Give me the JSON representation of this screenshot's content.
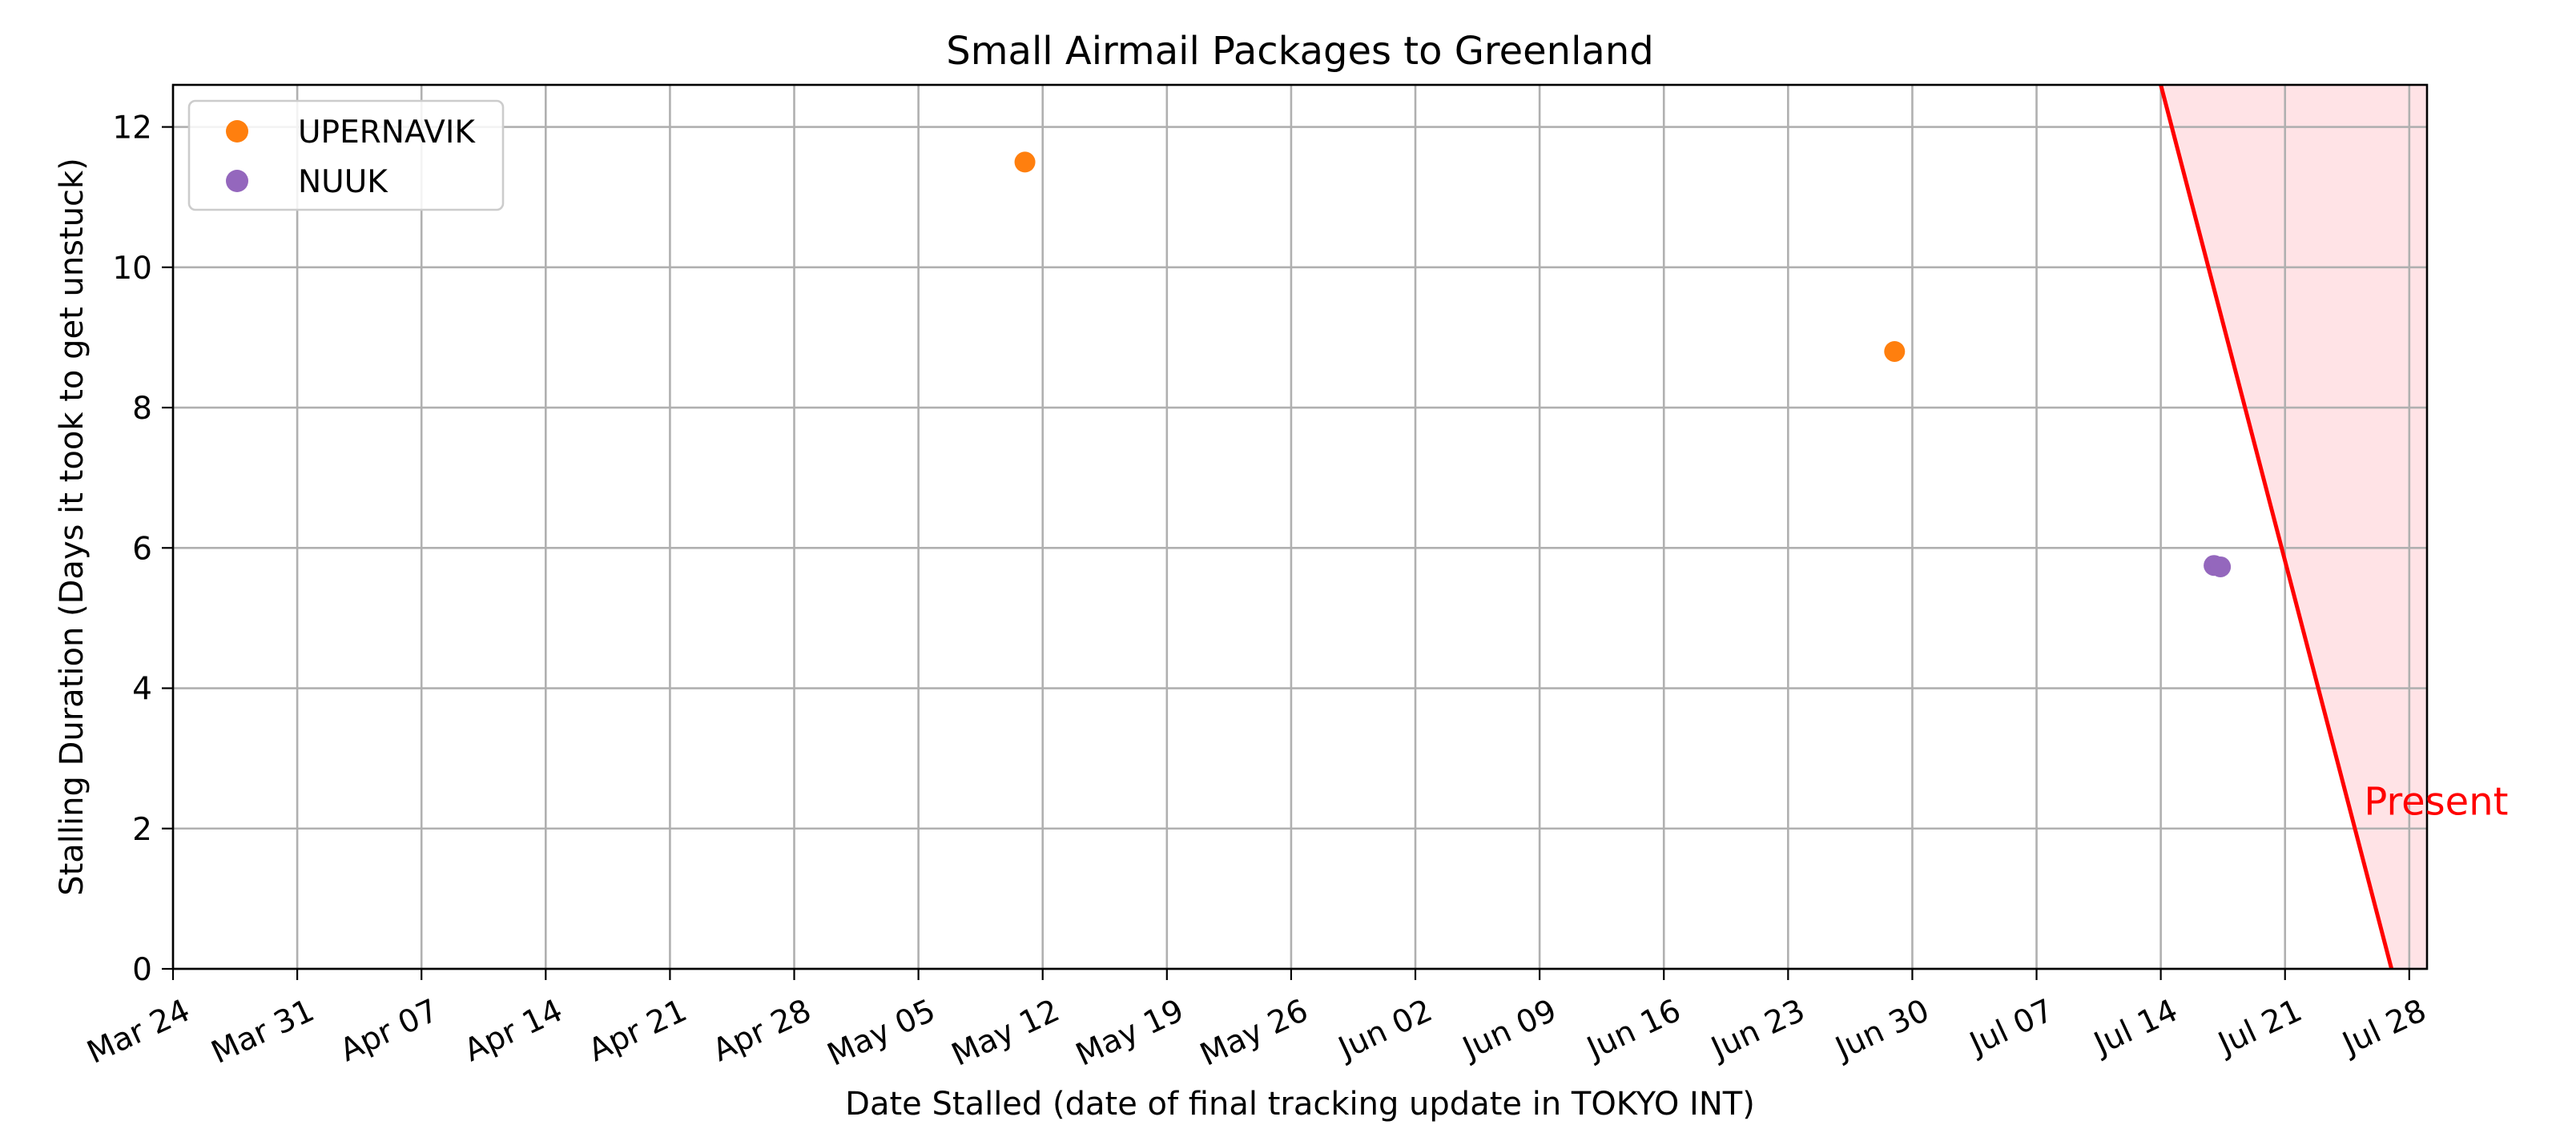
{
  "chart_data": {
    "type": "scatter",
    "title": "Small Airmail Packages to Greenland",
    "xlabel": "Date Stalled (date of final tracking update in TOKYO INT)",
    "ylabel": "Stalling Duration (Days it took to get unstuck)",
    "x_axis_type": "date",
    "xlim": [
      "2024-03-24",
      "2024-07-29"
    ],
    "ylim": [
      0,
      12.6
    ],
    "x_ticks": [
      {
        "date": "2024-03-24",
        "label": "Mar 24"
      },
      {
        "date": "2024-03-31",
        "label": "Mar 31"
      },
      {
        "date": "2024-04-07",
        "label": "Apr 07"
      },
      {
        "date": "2024-04-14",
        "label": "Apr 14"
      },
      {
        "date": "2024-04-21",
        "label": "Apr 21"
      },
      {
        "date": "2024-04-28",
        "label": "Apr 28"
      },
      {
        "date": "2024-05-05",
        "label": "May 05"
      },
      {
        "date": "2024-05-12",
        "label": "May 12"
      },
      {
        "date": "2024-05-19",
        "label": "May 19"
      },
      {
        "date": "2024-05-26",
        "label": "May 26"
      },
      {
        "date": "2024-06-02",
        "label": "Jun 02"
      },
      {
        "date": "2024-06-09",
        "label": "Jun 09"
      },
      {
        "date": "2024-06-16",
        "label": "Jun 16"
      },
      {
        "date": "2024-06-23",
        "label": "Jun 23"
      },
      {
        "date": "2024-06-30",
        "label": "Jun 30"
      },
      {
        "date": "2024-07-07",
        "label": "Jul 07"
      },
      {
        "date": "2024-07-14",
        "label": "Jul 14"
      },
      {
        "date": "2024-07-21",
        "label": "Jul 21"
      },
      {
        "date": "2024-07-28",
        "label": "Jul 28"
      }
    ],
    "y_ticks": [
      0,
      2,
      4,
      6,
      8,
      10,
      12
    ],
    "grid": true,
    "legend_position": "top-left",
    "series": [
      {
        "name": "UPERNAVIK",
        "color": "#ff7f0e",
        "points": [
          {
            "x": "2024-05-11",
            "y": 11.5
          },
          {
            "x": "2024-06-29",
            "y": 8.8
          }
        ]
      },
      {
        "name": "NUUK",
        "color": "#9467bd",
        "points": [
          {
            "x": "2024-07-17",
            "y": 5.75
          },
          {
            "x": "2024-07-17",
            "y": 5.73
          }
        ]
      }
    ],
    "annotations": [
      {
        "label": "Present",
        "color": "#ff0000",
        "shade_color": "#ffe3e6",
        "line": [
          {
            "x": "2024-07-14",
            "y": 12.6
          },
          {
            "x": "2024-07-27",
            "y": 0
          }
        ],
        "label_anchor": {
          "x": "2024-07-25",
          "y": 2.4
        }
      }
    ]
  }
}
